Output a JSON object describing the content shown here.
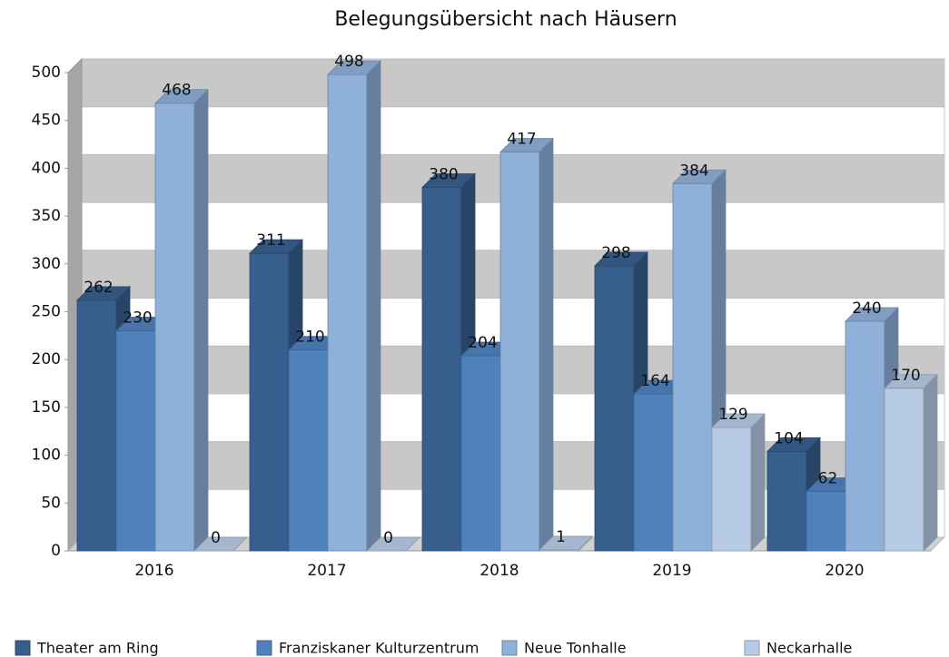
{
  "chart_data": {
    "type": "bar3d",
    "title": "Belegungsübersicht nach Häusern",
    "categories": [
      "2016",
      "2017",
      "2018",
      "2019",
      "2020"
    ],
    "series": [
      {
        "name": "Theater am Ring",
        "color": "#375f8e",
        "values": [
          262,
          311,
          380,
          298,
          104
        ]
      },
      {
        "name": "Franziskaner Kulturzentrum",
        "color": "#4f81bd",
        "values": [
          230,
          210,
          204,
          164,
          62
        ]
      },
      {
        "name": "Neue Tonhalle",
        "color": "#8fb0d8",
        "values": [
          468,
          498,
          417,
          384,
          240
        ]
      },
      {
        "name": "Neckarhalle",
        "color": "#b7cbe5",
        "values": [
          0,
          0,
          1,
          129,
          170
        ]
      }
    ],
    "ylim": [
      0,
      500
    ],
    "yticks": [
      0,
      50,
      100,
      150,
      200,
      250,
      300,
      350,
      400,
      450,
      500
    ],
    "grid": true,
    "legend": "bottom"
  }
}
